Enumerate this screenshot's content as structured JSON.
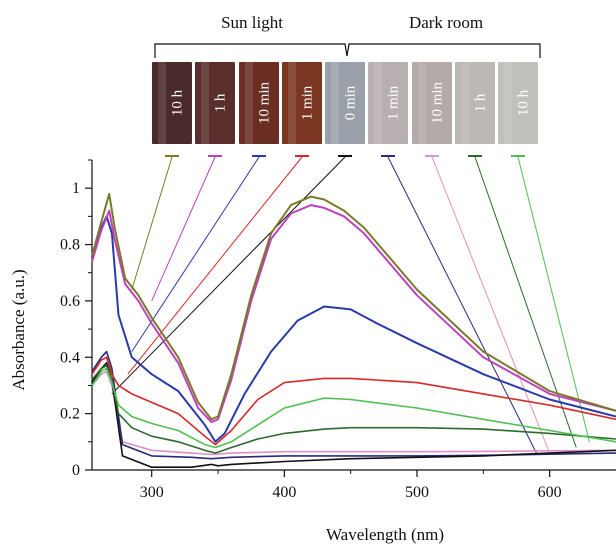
{
  "header": {
    "sun_label": "Sun light",
    "dark_label": "Dark room"
  },
  "photos": [
    {
      "label": "10 h",
      "group": "sun",
      "tint": "#4a2a2a",
      "series": "10 h (sun)"
    },
    {
      "label": "1 h",
      "group": "sun",
      "tint": "#5a2e2c",
      "series": "1 h (sun)"
    },
    {
      "label": "10 min",
      "group": "sun",
      "tint": "#6a2e22",
      "series": "10 min (sun)"
    },
    {
      "label": "1 min",
      "group": "sun",
      "tint": "#7a3620",
      "series": "1 min (sun)"
    },
    {
      "label": "0 min",
      "group": "mid",
      "tint": "#9aa0aa",
      "series": "0 min"
    },
    {
      "label": "1 min",
      "group": "dark",
      "tint": "#b8b0b0",
      "series": "1 min (dark)"
    },
    {
      "label": "10 min",
      "group": "dark",
      "tint": "#b4aaa8",
      "series": "10 min (dark)"
    },
    {
      "label": "1 h",
      "group": "dark",
      "tint": "#bcb8b4",
      "series": "1 h (dark)"
    },
    {
      "label": "10 h",
      "group": "dark",
      "tint": "#c2c0bc",
      "series": "10 h (dark)"
    }
  ],
  "chart_data": {
    "type": "line",
    "xlabel": "Wavelength (nm)",
    "ylabel": "Absorbance (a.u.)",
    "xlim": [
      255,
      650
    ],
    "ylim": [
      0,
      1.1
    ],
    "xticks": [
      300,
      400,
      500,
      600
    ],
    "xtick_labels": [
      "300",
      "400",
      "500",
      "600"
    ],
    "yticks": [
      0,
      0.2,
      0.4,
      0.6,
      0.8,
      1
    ],
    "ytick_labels": [
      "0",
      "0.2",
      "0.4",
      "0.6",
      "0.8",
      "1"
    ],
    "grid": false,
    "legend": "none",
    "series": [
      {
        "key": "10 min (dark)",
        "color": "#e090c8",
        "x": [
          255,
          262,
          266,
          270,
          278,
          300,
          330,
          345,
          360,
          400,
          450,
          500,
          550,
          600,
          650
        ],
        "y": [
          0.3,
          0.34,
          0.35,
          0.3,
          0.1,
          0.07,
          0.06,
          0.055,
          0.06,
          0.065,
          0.065,
          0.065,
          0.066,
          0.068,
          0.07
        ]
      },
      {
        "key": "1 min (dark)",
        "color": "#2a2a78",
        "x": [
          255,
          262,
          266,
          270,
          278,
          300,
          330,
          345,
          360,
          400,
          450,
          500,
          550,
          600,
          650
        ],
        "y": [
          0.35,
          0.4,
          0.42,
          0.36,
          0.09,
          0.05,
          0.045,
          0.04,
          0.045,
          0.05,
          0.05,
          0.05,
          0.052,
          0.056,
          0.06
        ]
      },
      {
        "key": "0 min",
        "color": "#111111",
        "x": [
          255,
          262,
          266,
          270,
          278,
          300,
          330,
          345,
          350,
          360,
          400,
          450,
          500,
          550,
          600,
          650
        ],
        "y": [
          0.31,
          0.36,
          0.38,
          0.32,
          0.05,
          0.01,
          0.01,
          0.02,
          0.015,
          0.02,
          0.03,
          0.04,
          0.045,
          0.05,
          0.06,
          0.07
        ]
      },
      {
        "key": "1 h (dark)",
        "color": "#2e6a2e",
        "x": [
          255,
          262,
          266,
          270,
          275,
          285,
          300,
          320,
          340,
          348,
          360,
          380,
          400,
          430,
          450,
          500,
          550,
          600,
          650
        ],
        "y": [
          0.32,
          0.36,
          0.37,
          0.32,
          0.2,
          0.15,
          0.12,
          0.1,
          0.07,
          0.06,
          0.08,
          0.11,
          0.13,
          0.145,
          0.15,
          0.15,
          0.145,
          0.13,
          0.11
        ]
      },
      {
        "key": "10 h (dark)",
        "color": "#50c050",
        "x": [
          255,
          262,
          266,
          270,
          275,
          285,
          300,
          320,
          340,
          348,
          360,
          380,
          400,
          430,
          450,
          500,
          550,
          600,
          650
        ],
        "y": [
          0.3,
          0.35,
          0.36,
          0.31,
          0.23,
          0.19,
          0.165,
          0.14,
          0.09,
          0.08,
          0.1,
          0.16,
          0.22,
          0.255,
          0.25,
          0.22,
          0.18,
          0.14,
          0.1
        ]
      },
      {
        "key": "1 min (sun)",
        "color": "#d82828",
        "x": [
          255,
          262,
          266,
          270,
          275,
          285,
          300,
          320,
          340,
          348,
          360,
          380,
          400,
          430,
          450,
          500,
          550,
          600,
          650
        ],
        "y": [
          0.34,
          0.39,
          0.4,
          0.34,
          0.3,
          0.27,
          0.24,
          0.2,
          0.12,
          0.09,
          0.14,
          0.25,
          0.31,
          0.325,
          0.325,
          0.31,
          0.27,
          0.23,
          0.18
        ]
      },
      {
        "key": "10 min (sun)",
        "color": "#2a3aa8",
        "x": [
          255,
          262,
          266,
          270,
          275,
          285,
          300,
          320,
          340,
          348,
          355,
          370,
          390,
          410,
          430,
          450,
          470,
          500,
          550,
          600,
          650
        ],
        "y": [
          0.76,
          0.86,
          0.9,
          0.84,
          0.55,
          0.4,
          0.34,
          0.28,
          0.16,
          0.1,
          0.13,
          0.27,
          0.42,
          0.53,
          0.58,
          0.57,
          0.52,
          0.45,
          0.34,
          0.25,
          0.19
        ]
      },
      {
        "key": "1 h (sun)",
        "color": "#c040c0",
        "x": [
          255,
          262,
          268,
          272,
          280,
          290,
          300,
          320,
          335,
          345,
          350,
          360,
          375,
          390,
          405,
          420,
          430,
          445,
          460,
          500,
          550,
          600,
          650
        ],
        "y": [
          0.74,
          0.85,
          0.92,
          0.82,
          0.66,
          0.6,
          0.52,
          0.38,
          0.22,
          0.17,
          0.18,
          0.32,
          0.6,
          0.82,
          0.91,
          0.94,
          0.93,
          0.9,
          0.84,
          0.62,
          0.4,
          0.27,
          0.21
        ]
      },
      {
        "key": "10 h (sun)",
        "color": "#7a7a2a",
        "x": [
          255,
          262,
          268,
          272,
          280,
          290,
          300,
          320,
          335,
          345,
          350,
          360,
          375,
          390,
          405,
          420,
          430,
          445,
          460,
          500,
          550,
          600,
          650
        ],
        "y": [
          0.76,
          0.88,
          0.98,
          0.86,
          0.68,
          0.62,
          0.54,
          0.4,
          0.24,
          0.18,
          0.19,
          0.34,
          0.62,
          0.84,
          0.94,
          0.97,
          0.96,
          0.92,
          0.86,
          0.64,
          0.42,
          0.28,
          0.21
        ]
      }
    ]
  }
}
